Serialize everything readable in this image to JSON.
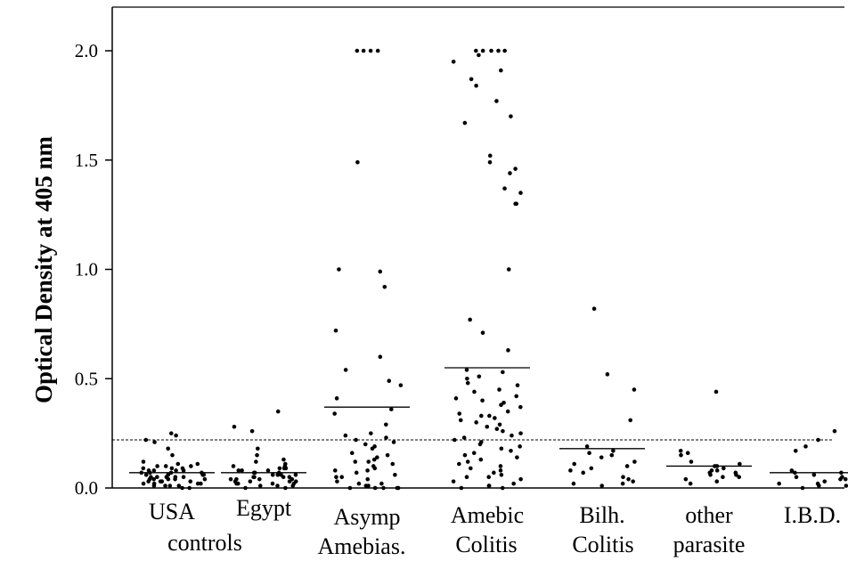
{
  "chart_data": {
    "type": "scatter",
    "title": "",
    "xlabel": "",
    "ylabel": "Optical Density at 405 nm",
    "ylim": [
      0.0,
      2.0
    ],
    "yticks": [
      "0.0",
      "0.5",
      "1.0",
      "1.5",
      "2.0"
    ],
    "yticks_values": [
      0.0,
      0.5,
      1.0,
      1.5,
      2.0
    ],
    "cutoff_line": 0.22,
    "categories": [
      {
        "line1": "USA",
        "line2": "controls"
      },
      {
        "line1": "Egypt",
        "line2": ""
      },
      {
        "line1": "Asymp",
        "line2": "Amebias."
      },
      {
        "line1": "Amebic",
        "line2": "Colitis"
      },
      {
        "line1": "Bilh.",
        "line2": "Colitis"
      },
      {
        "line1": "other",
        "line2": "parasite"
      },
      {
        "line1": "I.B.D.",
        "line2": ""
      }
    ],
    "means": [
      0.07,
      0.07,
      0.37,
      0.55,
      0.18,
      0.1,
      0.07
    ],
    "series": [
      {
        "values": [
          0.25,
          0.24,
          0.22,
          0.21,
          0.18,
          0.15,
          0.12,
          0.11,
          0.11,
          0.1,
          0.1,
          0.1,
          0.09,
          0.09,
          0.09,
          0.08,
          0.08,
          0.08,
          0.08,
          0.07,
          0.07,
          0.07,
          0.07,
          0.06,
          0.06,
          0.06,
          0.06,
          0.05,
          0.05,
          0.05,
          0.05,
          0.05,
          0.04,
          0.04,
          0.04,
          0.04,
          0.04,
          0.03,
          0.03,
          0.03,
          0.03,
          0.03,
          0.02,
          0.02,
          0.02,
          0.02,
          0.01,
          0.01,
          0.01,
          0.01,
          0.0,
          0.0
        ]
      },
      {
        "values": [
          0.35,
          0.28,
          0.26,
          0.18,
          0.15,
          0.13,
          0.12,
          0.11,
          0.1,
          0.1,
          0.09,
          0.09,
          0.09,
          0.08,
          0.08,
          0.08,
          0.07,
          0.07,
          0.07,
          0.06,
          0.06,
          0.06,
          0.06,
          0.05,
          0.05,
          0.05,
          0.05,
          0.04,
          0.04,
          0.04,
          0.04,
          0.03,
          0.03,
          0.03,
          0.03,
          0.02,
          0.02,
          0.02,
          0.02,
          0.01,
          0.01,
          0.01,
          0.0,
          0.0
        ]
      },
      {
        "values": [
          2.0,
          2.0,
          2.0,
          2.0,
          1.49,
          1.0,
          0.99,
          0.92,
          0.72,
          0.6,
          0.54,
          0.49,
          0.47,
          0.41,
          0.36,
          0.34,
          0.29,
          0.25,
          0.24,
          0.23,
          0.22,
          0.21,
          0.2,
          0.19,
          0.18,
          0.16,
          0.15,
          0.14,
          0.13,
          0.12,
          0.12,
          0.11,
          0.1,
          0.09,
          0.08,
          0.08,
          0.07,
          0.06,
          0.05,
          0.05,
          0.04,
          0.03,
          0.02,
          0.02,
          0.01,
          0.01,
          0.0,
          0.0,
          0.0,
          0.0,
          0.0
        ]
      },
      {
        "values": [
          2.0,
          2.0,
          2.0,
          2.0,
          2.0,
          1.98,
          1.95,
          1.91,
          1.87,
          1.84,
          1.77,
          1.7,
          1.67,
          1.52,
          1.49,
          1.46,
          1.44,
          1.37,
          1.35,
          1.3,
          1.3,
          1.0,
          0.77,
          0.71,
          0.63,
          0.54,
          0.53,
          0.51,
          0.5,
          0.48,
          0.47,
          0.45,
          0.44,
          0.42,
          0.41,
          0.4,
          0.39,
          0.38,
          0.37,
          0.35,
          0.34,
          0.33,
          0.33,
          0.32,
          0.31,
          0.3,
          0.29,
          0.28,
          0.27,
          0.26,
          0.25,
          0.24,
          0.23,
          0.22,
          0.21,
          0.2,
          0.19,
          0.18,
          0.17,
          0.16,
          0.15,
          0.14,
          0.13,
          0.12,
          0.11,
          0.1,
          0.09,
          0.08,
          0.07,
          0.06,
          0.05,
          0.05,
          0.04,
          0.03,
          0.02,
          0.01,
          0.01,
          0.0,
          0.0
        ]
      },
      {
        "values": [
          0.82,
          0.52,
          0.45,
          0.31,
          0.19,
          0.17,
          0.16,
          0.15,
          0.14,
          0.12,
          0.11,
          0.1,
          0.09,
          0.08,
          0.07,
          0.05,
          0.04,
          0.03,
          0.02,
          0.02,
          0.01
        ]
      },
      {
        "values": [
          0.44,
          0.17,
          0.16,
          0.15,
          0.12,
          0.11,
          0.1,
          0.1,
          0.09,
          0.08,
          0.08,
          0.07,
          0.07,
          0.06,
          0.06,
          0.05,
          0.05,
          0.04,
          0.03,
          0.02
        ]
      },
      {
        "values": [
          0.26,
          0.22,
          0.19,
          0.17,
          0.08,
          0.07,
          0.07,
          0.06,
          0.05,
          0.05,
          0.04,
          0.04,
          0.03,
          0.02,
          0.02,
          0.01,
          0.01,
          0.0
        ]
      }
    ]
  }
}
